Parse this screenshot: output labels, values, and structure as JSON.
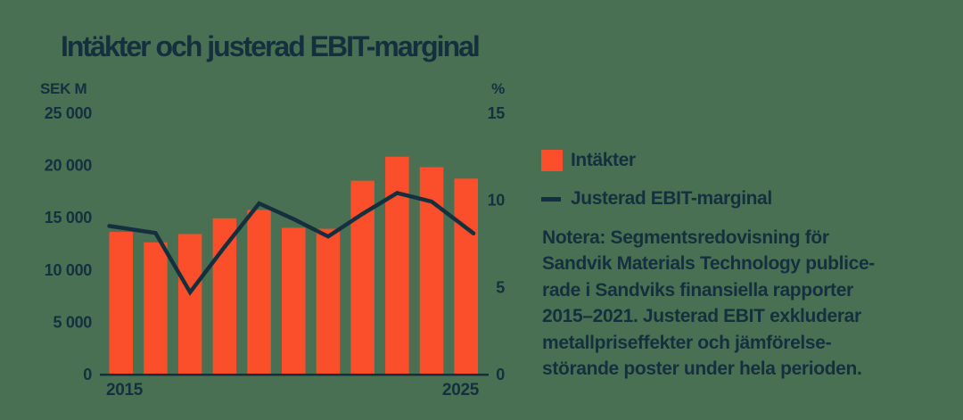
{
  "title": "Intäkter och justerad EBIT-marginal",
  "colors": {
    "background": "#4A7053",
    "bar": "#FB4F2C",
    "line": "#14303E",
    "text": "#14303E"
  },
  "legend": [
    {
      "label": "Intäkter",
      "swatch": "bar"
    },
    {
      "label": "Justerad EBIT-marginal",
      "swatch": "line"
    }
  ],
  "note_lines": [
    "Notera: Segmentsredovisning för",
    "Sandvik Materials Technology publice-",
    "rade i Sandviks finansiella rapporter",
    "2015–2021. Justerad EBIT exkluderar",
    "metallpriseffekter och jämförelse-",
    "störande poster under hela perioden."
  ],
  "chart_data": {
    "type": "bar+line",
    "x": [
      2015,
      2016,
      2017,
      2018,
      2019,
      2020,
      2021,
      2022,
      2023,
      2024,
      2025
    ],
    "series": [
      {
        "name": "Intäkter",
        "type": "bar",
        "axis": "left",
        "unit": "SEK M",
        "values": [
          13600,
          12600,
          13400,
          14900,
          15700,
          14000,
          13900,
          18500,
          20800,
          19800,
          18700
        ]
      },
      {
        "name": "Justerad EBIT-marginal",
        "type": "line",
        "axis": "right",
        "unit": "%",
        "values": [
          8.4,
          8.1,
          4.7,
          7.3,
          9.8,
          8.9,
          7.9,
          9.2,
          10.4,
          9.9,
          8.4
        ]
      }
    ],
    "left_axis": {
      "label": "SEK M",
      "lim": [
        0,
        25000
      ],
      "ticks": [
        {
          "value": 25000,
          "label": "25 000"
        },
        {
          "value": 20000,
          "label": "20 000"
        },
        {
          "value": 15000,
          "label": "15 000"
        },
        {
          "value": 10000,
          "label": "10 000"
        },
        {
          "value": 5000,
          "label": "5 000"
        },
        {
          "value": 0,
          "label": "0"
        }
      ]
    },
    "right_axis": {
      "label": "%",
      "lim": [
        0,
        15
      ],
      "ticks": [
        {
          "value": 15,
          "label": "15"
        },
        {
          "value": 10,
          "label": "10"
        },
        {
          "value": 5,
          "label": "5"
        },
        {
          "value": 0,
          "label": "0"
        }
      ]
    },
    "x_axis": {
      "tick_labels": [
        {
          "label": "2015",
          "anchor": "start"
        },
        {
          "label": "2025",
          "anchor": "end"
        }
      ]
    },
    "grid": false,
    "legend_position": "right"
  }
}
